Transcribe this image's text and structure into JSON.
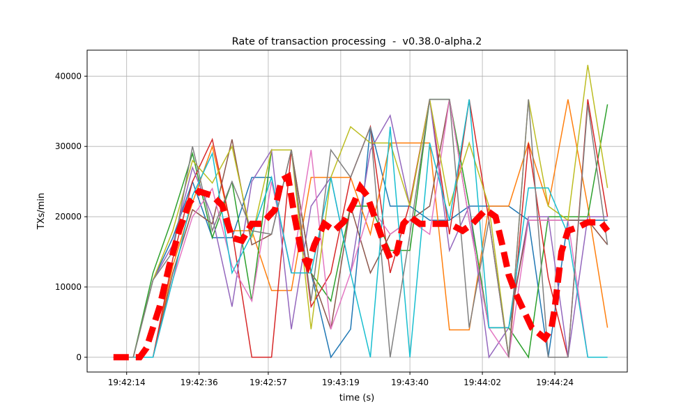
{
  "chart_data": {
    "type": "line",
    "title": "Rate of transaction processing  -  v0.38.0-alpha.2",
    "xlabel": "time (s)",
    "ylabel": "TXs/min",
    "xlim": [
      "19:42:02",
      "19:44:46"
    ],
    "ylim": [
      -2100,
      43700
    ],
    "grid": true,
    "xticks": [
      "19:42:14",
      "19:42:36",
      "19:42:57",
      "19:43:19",
      "19:43:40",
      "19:44:02",
      "19:44:24"
    ],
    "yticks": [
      0,
      10000,
      20000,
      30000,
      40000
    ],
    "x": [
      "19:42:10",
      "19:42:16",
      "19:42:22",
      "19:42:28",
      "19:42:34",
      "19:42:40",
      "19:42:46",
      "19:42:52",
      "19:42:58",
      "19:43:04",
      "19:43:10",
      "19:43:16",
      "19:43:22",
      "19:43:28",
      "19:43:34",
      "19:43:40",
      "19:43:46",
      "19:43:52",
      "19:43:58",
      "19:44:04",
      "19:44:10",
      "19:44:16",
      "19:44:22",
      "19:44:28",
      "19:44:34",
      "19:44:40"
    ],
    "series": [
      {
        "color": "#1f77b4",
        "values": [
          0,
          0,
          11000,
          17000,
          25000,
          17000,
          17000,
          25600,
          25600,
          12000,
          12000,
          0,
          4000,
          32800,
          21500,
          21500,
          19500,
          19500,
          21500,
          21500,
          21500,
          19500,
          0,
          19500,
          19500,
          19500
        ]
      },
      {
        "color": "#ff7f0e",
        "values": [
          0,
          0,
          0,
          13000,
          22000,
          30000,
          18000,
          18000,
          9500,
          9500,
          25600,
          25600,
          25600,
          17500,
          30500,
          30500,
          30500,
          3900,
          3900,
          21500,
          21500,
          30500,
          21500,
          36700,
          21500,
          4200
        ]
      },
      {
        "color": "#2ca02c",
        "values": [
          0,
          0,
          12000,
          20000,
          29000,
          17000,
          25000,
          8000,
          29500,
          29500,
          12000,
          8000,
          21500,
          21500,
          15200,
          15200,
          36700,
          36700,
          21500,
          4200,
          4200,
          0,
          20000,
          20000,
          20000,
          36000
        ]
      },
      {
        "color": "#d62728",
        "values": [
          0,
          0,
          0,
          14000,
          25000,
          31000,
          18000,
          0,
          0,
          29500,
          7200,
          12000,
          25600,
          32800,
          12000,
          22000,
          36700,
          17500,
          36700,
          19500,
          0,
          30500,
          11300,
          0,
          36700,
          20000
        ]
      },
      {
        "color": "#9467bd",
        "values": [
          0,
          0,
          11000,
          16000,
          27000,
          20000,
          7200,
          25000,
          29500,
          4000,
          21500,
          25600,
          12000,
          29500,
          34400,
          21500,
          36700,
          15200,
          21500,
          0,
          4200,
          20000,
          20000,
          0,
          20000,
          20000
        ]
      },
      {
        "color": "#8c564b",
        "values": [
          0,
          0,
          0,
          12000,
          21000,
          19000,
          31000,
          16000,
          17500,
          29500,
          12000,
          4000,
          21500,
          12000,
          17500,
          19500,
          21500,
          36700,
          19500,
          4200,
          4200,
          19500,
          19500,
          19500,
          19500,
          16000
        ]
      },
      {
        "color": "#e377c2",
        "values": [
          0,
          0,
          0,
          11000,
          20000,
          24000,
          13000,
          8000,
          25000,
          12000,
          29500,
          4000,
          12000,
          21500,
          17500,
          19500,
          17500,
          36700,
          19500,
          4200,
          0,
          19500,
          19500,
          19500,
          0,
          0
        ]
      },
      {
        "color": "#bcbd22",
        "values": [
          0,
          0,
          11000,
          18000,
          28000,
          24800,
          30000,
          17000,
          29500,
          29500,
          4000,
          25600,
          32800,
          30500,
          30500,
          21500,
          36700,
          21500,
          30500,
          21500,
          0,
          36700,
          21500,
          19500,
          41600,
          24100
        ]
      },
      {
        "color": "#17becf",
        "values": [
          0,
          0,
          0,
          11000,
          23000,
          29000,
          12000,
          17500,
          25600,
          12000,
          12000,
          25600,
          12000,
          0,
          32800,
          0,
          30500,
          19500,
          36700,
          4200,
          4200,
          24100,
          24100,
          17500,
          0,
          0
        ]
      },
      {
        "color": "#7f7f7f",
        "values": [
          0,
          0,
          11000,
          15000,
          30000,
          18000,
          25000,
          18000,
          17500,
          29500,
          8000,
          29500,
          25600,
          32800,
          0,
          17500,
          36700,
          36700,
          4200,
          19500,
          0,
          36700,
          0,
          0,
          36000,
          16000
        ]
      }
    ],
    "average": {
      "color": "#ff0000",
      "style": "dashed",
      "points": [
        [
          "19:42:10",
          0
        ],
        [
          "19:42:18",
          0
        ],
        [
          "19:42:20",
          1300
        ],
        [
          "19:42:24",
          7200
        ],
        [
          "19:42:27",
          13100
        ],
        [
          "19:42:30",
          18100
        ],
        [
          "19:42:33",
          22000
        ],
        [
          "19:42:36",
          23600
        ],
        [
          "19:42:40",
          23000
        ],
        [
          "19:42:43",
          21600
        ],
        [
          "19:42:46",
          17000
        ],
        [
          "19:42:49",
          16600
        ],
        [
          "19:42:52",
          19000
        ],
        [
          "19:42:55",
          19000
        ],
        [
          "19:42:59",
          21000
        ],
        [
          "19:43:01",
          25200
        ],
        [
          "19:43:03",
          25700
        ],
        [
          "19:43:05",
          20000
        ],
        [
          "19:43:07",
          15000
        ],
        [
          "19:43:09",
          13100
        ],
        [
          "19:43:11",
          16000
        ],
        [
          "19:43:14",
          19000
        ],
        [
          "19:43:17",
          18000
        ],
        [
          "19:43:20",
          19300
        ],
        [
          "19:43:23",
          22000
        ],
        [
          "19:43:25",
          24200
        ],
        [
          "19:43:27",
          23000
        ],
        [
          "19:43:30",
          19000
        ],
        [
          "19:43:32",
          16300
        ],
        [
          "19:43:34",
          14000
        ],
        [
          "19:43:36",
          14900
        ],
        [
          "19:43:38",
          19000
        ],
        [
          "19:43:40",
          20000
        ],
        [
          "19:43:43",
          19000
        ],
        [
          "19:43:48",
          19000
        ],
        [
          "19:43:52",
          19000
        ],
        [
          "19:43:56",
          18000
        ],
        [
          "19:43:59",
          19000
        ],
        [
          "19:44:03",
          21000
        ],
        [
          "19:44:06",
          20000
        ],
        [
          "19:44:08",
          16100
        ],
        [
          "19:44:10",
          11700
        ],
        [
          "19:44:12",
          9200
        ],
        [
          "19:44:14",
          7200
        ],
        [
          "19:44:17",
          4200
        ],
        [
          "19:44:21",
          2700
        ],
        [
          "19:44:23",
          4200
        ],
        [
          "19:44:24",
          7100
        ],
        [
          "19:44:26",
          15000
        ],
        [
          "19:44:28",
          18000
        ],
        [
          "19:44:31",
          18500
        ],
        [
          "19:44:34",
          19200
        ],
        [
          "19:44:38",
          19200
        ],
        [
          "19:44:40",
          18000
        ]
      ]
    }
  }
}
